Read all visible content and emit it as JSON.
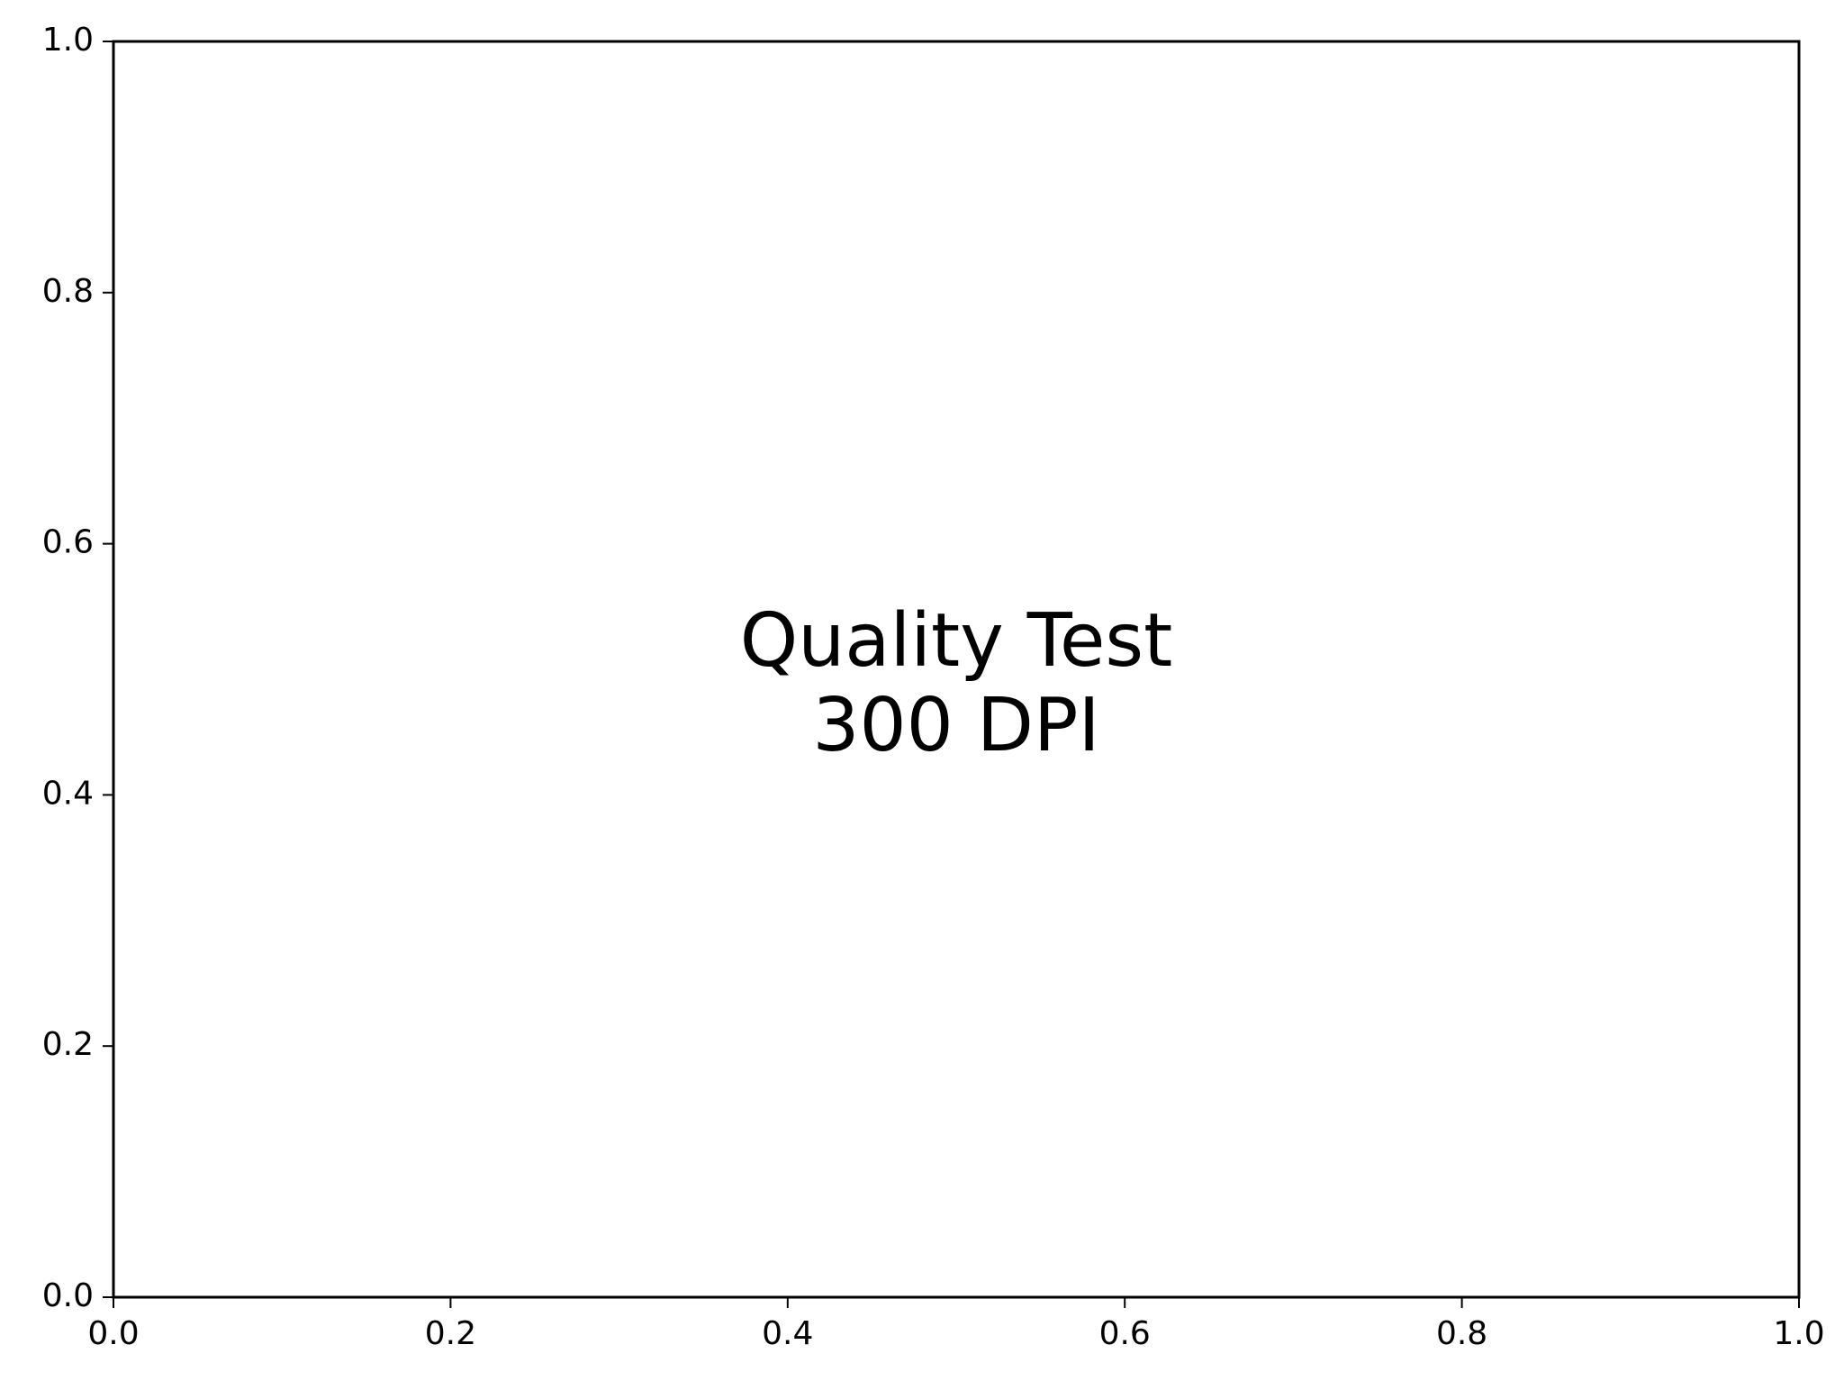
{
  "chart_data": {
    "type": "scatter",
    "title": "",
    "xlabel": "",
    "ylabel": "",
    "xlim": [
      0.0,
      1.0
    ],
    "ylim": [
      0.0,
      1.0
    ],
    "x_ticks": [
      0.0,
      0.2,
      0.4,
      0.6,
      0.8,
      1.0
    ],
    "y_ticks": [
      0.0,
      0.2,
      0.4,
      0.6,
      0.8,
      1.0
    ],
    "x_tick_labels": [
      "0.0",
      "0.2",
      "0.4",
      "0.6",
      "0.8",
      "1.0"
    ],
    "y_tick_labels": [
      "0.0",
      "0.2",
      "0.4",
      "0.6",
      "0.8",
      "1.0"
    ],
    "grid": false,
    "series": [],
    "annotation": {
      "lines": [
        "Quality Test",
        "300 DPI"
      ],
      "x": 0.5,
      "y": 0.5
    }
  }
}
